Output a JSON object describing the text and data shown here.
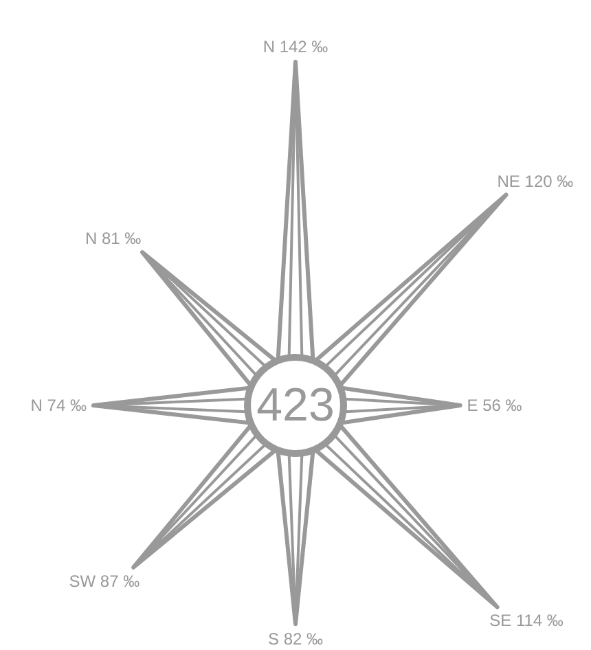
{
  "chart_data": {
    "type": "other",
    "categories": [
      "N",
      "NE",
      "E",
      "SE",
      "S",
      "SW",
      "N",
      "N"
    ],
    "values": [
      142,
      120,
      56,
      114,
      82,
      87,
      74,
      81
    ],
    "value_labels": [
      "142 ‰",
      "120 ‰",
      "56 ‰",
      "114 ‰",
      "82 ‰",
      "87 ‰",
      "74 ‰",
      "81 ‰"
    ],
    "color": "#999999",
    "annotations": [
      "423"
    ]
  }
}
